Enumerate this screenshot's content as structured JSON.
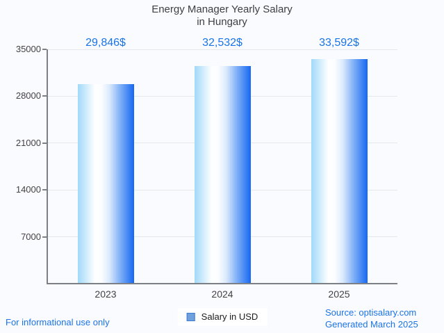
{
  "title": {
    "line1": "Energy Manager Yearly Salary",
    "line2": "in Hungary"
  },
  "chart_data": {
    "type": "bar",
    "title": "Energy Manager Yearly Salary in Hungary",
    "categories": [
      "2023",
      "2024",
      "2025"
    ],
    "series": [
      {
        "name": "Salary in USD",
        "values": [
          29846,
          32532,
          33592
        ]
      }
    ],
    "value_labels": [
      "29,846$",
      "32,532$",
      "33,592$"
    ],
    "ylim": [
      0,
      35000
    ],
    "yticks": [
      7000,
      14000,
      21000,
      28000,
      35000
    ],
    "grid": "horizontal",
    "legend_position": "bottom-center",
    "xlabel": "",
    "ylabel": ""
  },
  "legend": {
    "label": "Salary in USD"
  },
  "footer": {
    "disclaimer": "For informational use only",
    "source": "Source: optisalary.com",
    "generated": "Generated March 2025"
  },
  "colors": {
    "background": "#fafbfe",
    "accent_text": "#1a73e8",
    "title_text": "#3c4043",
    "axis_text": "#424242",
    "axis_line": "#7b8087",
    "gridline": "#e4e7ec",
    "legend_swatch_fill": "#6fa1dd",
    "legend_swatch_border": "#3d7ad6",
    "bar_gradient_stops": [
      "#a0d9f8 0%",
      "#fdfeff 30%",
      "#fbfdff 42%",
      "#dceafd 56%",
      "#7caef7 76%",
      "#1767f2 100%"
    ]
  }
}
